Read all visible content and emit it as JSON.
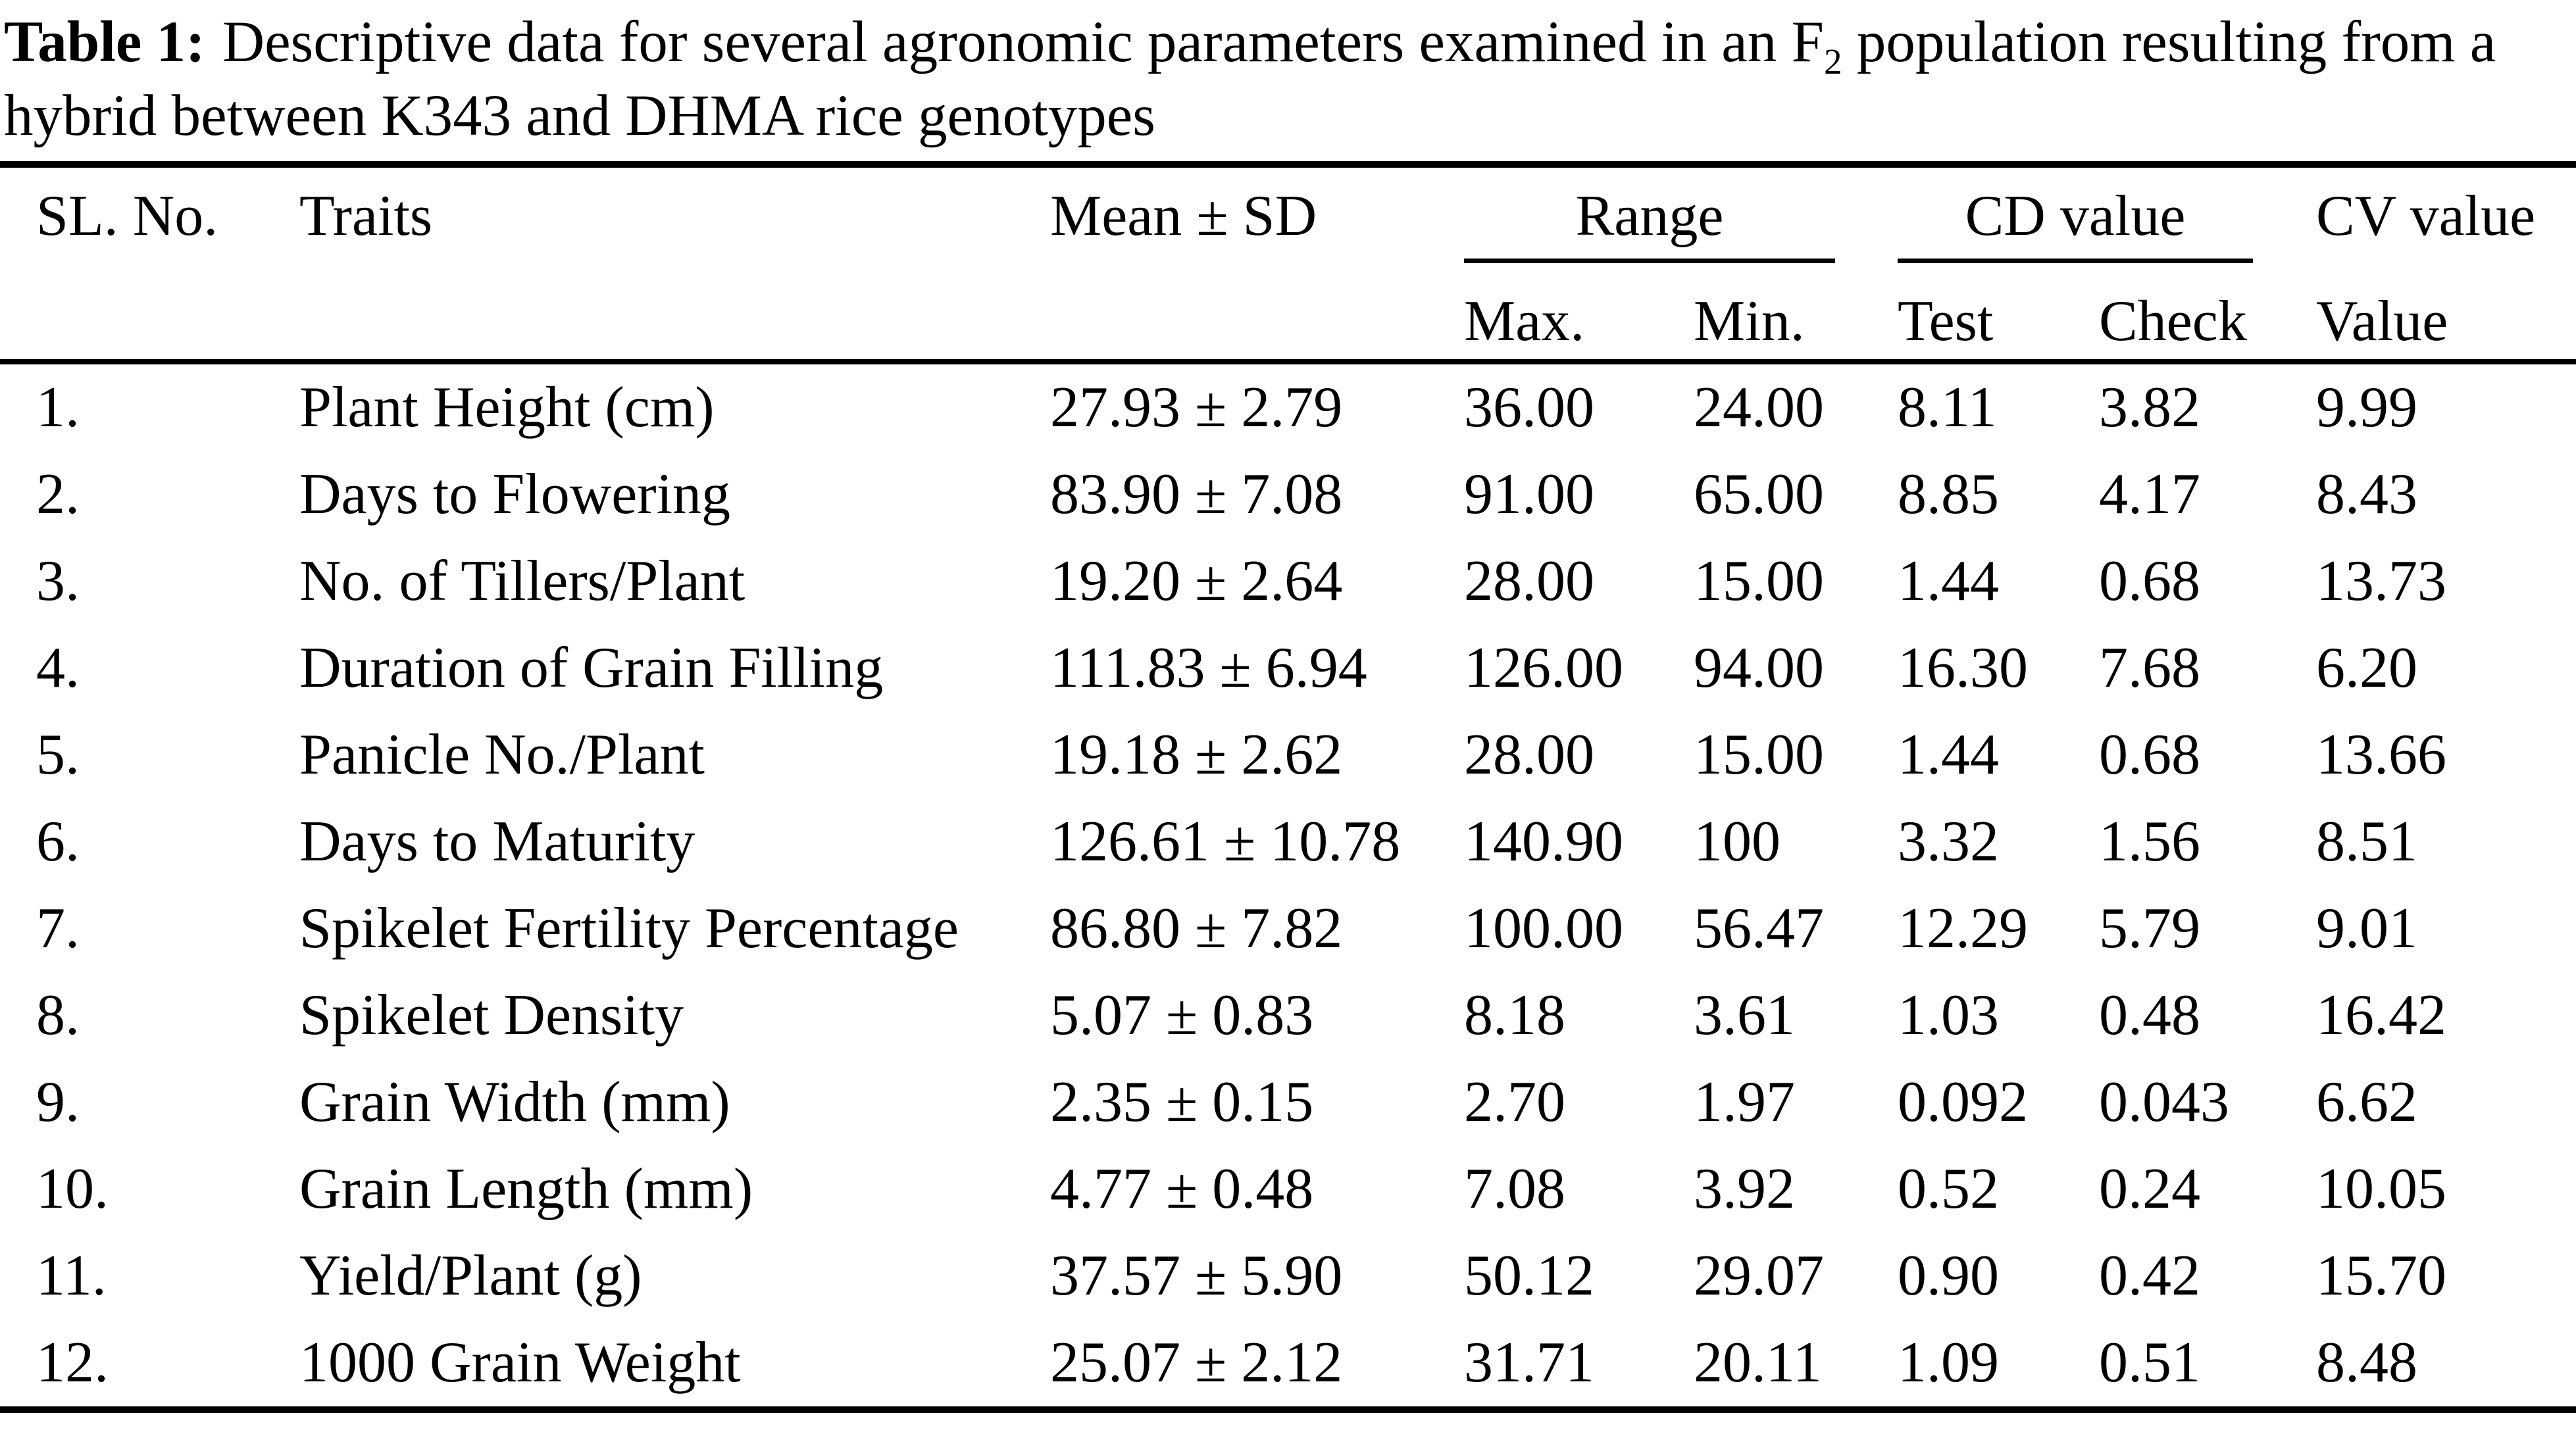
{
  "caption": {
    "bold_label": "Table 1:",
    "line1_before_sub": "Descriptive data for several agronomic parameters examined in an F",
    "subscript": "2",
    "line1_after_sub": " population resulting from a",
    "line2": "hybrid between K343 and DHMA rice genotypes"
  },
  "table": {
    "headers": {
      "sl_no": "SL. No.",
      "traits": "Traits",
      "mean_sd": "Mean ± SD",
      "range": "Range",
      "cd_value": "CD value",
      "cv_value": "CV value",
      "max": "Max.",
      "min": "Min.",
      "test": "Test",
      "check": "Check",
      "value": "Value"
    },
    "rows": [
      {
        "sl": "1.",
        "trait": "Plant Height (cm)",
        "mean_sd": "27.93 ± 2.79",
        "max": "36.00",
        "min": "24.00",
        "test": "8.11",
        "check": "3.82",
        "cv": "9.99"
      },
      {
        "sl": "2.",
        "trait": "Days to Flowering",
        "mean_sd": "83.90 ± 7.08",
        "max": "91.00",
        "min": "65.00",
        "test": "8.85",
        "check": "4.17",
        "cv": "8.43"
      },
      {
        "sl": "3.",
        "trait": "No. of Tillers/Plant",
        "mean_sd": "19.20 ± 2.64",
        "max": "28.00",
        "min": "15.00",
        "test": "1.44",
        "check": "0.68",
        "cv": "13.73"
      },
      {
        "sl": "4.",
        "trait": "Duration of Grain Filling",
        "mean_sd": "111.83 ± 6.94",
        "max": "126.00",
        "min": "94.00",
        "test": "16.30",
        "check": "7.68",
        "cv": "6.20"
      },
      {
        "sl": "5.",
        "trait": "Panicle No./Plant",
        "mean_sd": "19.18 ± 2.62",
        "max": "28.00",
        "min": "15.00",
        "test": "1.44",
        "check": "0.68",
        "cv": "13.66"
      },
      {
        "sl": "6.",
        "trait": "Days to Maturity",
        "mean_sd": "126.61 ± 10.78",
        "max": "140.90",
        "min": "100",
        "test": "3.32",
        "check": "1.56",
        "cv": "8.51"
      },
      {
        "sl": "7.",
        "trait": "Spikelet Fertility Percentage",
        "mean_sd": "86.80 ± 7.82",
        "max": "100.00",
        "min": "56.47",
        "test": "12.29",
        "check": "5.79",
        "cv": "9.01"
      },
      {
        "sl": "8.",
        "trait": "Spikelet Density",
        "mean_sd": "5.07 ± 0.83",
        "max": "8.18",
        "min": "3.61",
        "test": "1.03",
        "check": "0.48",
        "cv": "16.42"
      },
      {
        "sl": "9.",
        "trait": "Grain Width (mm)",
        "mean_sd": "2.35 ± 0.15",
        "max": "2.70",
        "min": "1.97",
        "test": "0.092",
        "check": "0.043",
        "cv": "6.62"
      },
      {
        "sl": "10.",
        "trait": "Grain Length (mm)",
        "mean_sd": "4.77 ± 0.48",
        "max": "7.08",
        "min": "3.92",
        "test": "0.52",
        "check": "0.24",
        "cv": "10.05"
      },
      {
        "sl": "11.",
        "trait": "Yield/Plant (g)",
        "mean_sd": "37.57 ± 5.90",
        "max": "50.12",
        "min": "29.07",
        "test": "0.90",
        "check": "0.42",
        "cv": "15.70"
      },
      {
        "sl": "12.",
        "trait": "1000 Grain Weight",
        "mean_sd": "25.07 ± 2.12",
        "max": "31.71",
        "min": "20.11",
        "test": "1.09",
        "check": "0.51",
        "cv": "8.48"
      }
    ]
  }
}
